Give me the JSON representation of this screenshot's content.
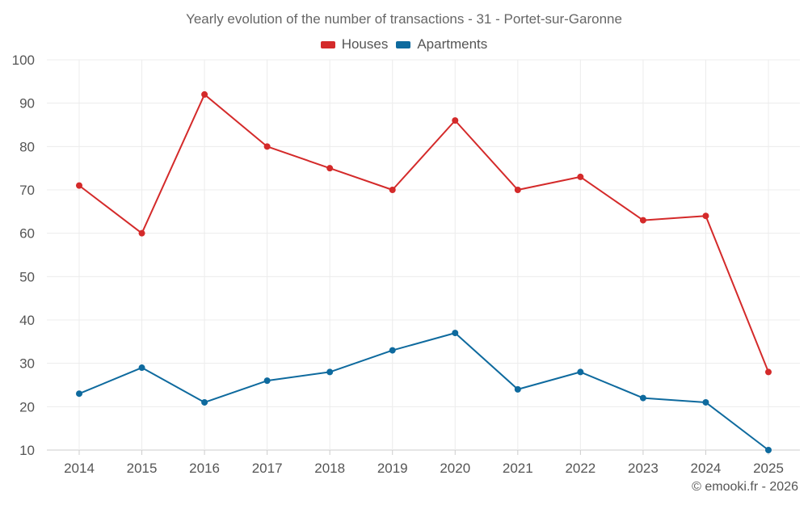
{
  "chart_data": {
    "type": "line",
    "title": "Yearly evolution of the number of transactions - 31 - Portet-sur-Garonne",
    "xlabel": "",
    "ylabel": "",
    "categories": [
      "2014",
      "2015",
      "2016",
      "2017",
      "2018",
      "2019",
      "2020",
      "2021",
      "2022",
      "2023",
      "2024",
      "2025"
    ],
    "ylim": [
      10,
      100
    ],
    "yticks": [
      10,
      20,
      30,
      40,
      50,
      60,
      70,
      80,
      90,
      100
    ],
    "grid": true,
    "legend_position": "top-center",
    "series": [
      {
        "name": "Houses",
        "color": "#d42a2a",
        "values": [
          71,
          60,
          92,
          80,
          75,
          70,
          86,
          70,
          73,
          63,
          64,
          28
        ]
      },
      {
        "name": "Apartments",
        "color": "#0e6a9e",
        "values": [
          23,
          29,
          21,
          26,
          28,
          33,
          37,
          24,
          28,
          22,
          21,
          10
        ]
      }
    ]
  },
  "credit": "© emooki.fr - 2026"
}
